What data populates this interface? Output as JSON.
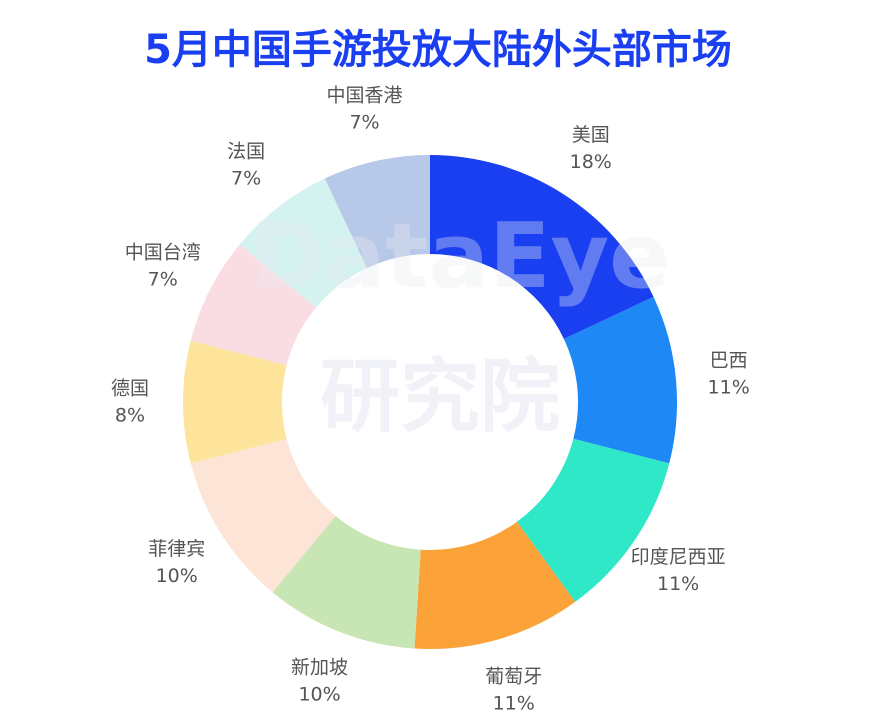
{
  "chart_data": {
    "type": "donut",
    "title": "5月中国手游投放大陆外头部市场",
    "categories": [
      "美国",
      "巴西",
      "印度尼西亚",
      "葡萄牙",
      "新加坡",
      "菲律宾",
      "德国",
      "中国台湾",
      "法国",
      "中国香港"
    ],
    "values": [
      18,
      11,
      11,
      11,
      10,
      10,
      8,
      7,
      7,
      7
    ],
    "value_labels": [
      "18%",
      "11%",
      "11%",
      "11%",
      "10%",
      "10%",
      "8%",
      "7%",
      "7%",
      "7%"
    ],
    "colors": [
      "#1a3ff0",
      "#1e88f5",
      "#2ee8c8",
      "#fba338",
      "#c8e6b4",
      "#fce4d6",
      "#fde49a",
      "#fadde3",
      "#d4f2f0",
      "#b8c8e8"
    ],
    "watermark": [
      "DataEye",
      "研究院"
    ]
  }
}
